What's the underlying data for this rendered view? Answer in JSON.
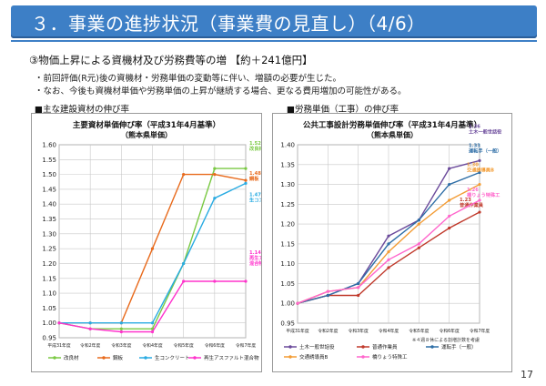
{
  "page": {
    "title": "３．事業の進捗状況（事業費の見直し）（4/6）",
    "subtitle": "③物価上昇による資機材及び労務費等の増 【約＋241億円】",
    "bullets": [
      "・前回評価(R元)後の資機材・労務単価の変動等に伴い、増額の必要が生じた。",
      "・なお、今後も資機材単価や労務単価の上昇が継続する場合、更なる費用増加の可能性がある。"
    ],
    "section_left": "■主な建設資材の伸び率",
    "section_right": "■労務単価（工事）の伸び率",
    "page_number": "17"
  },
  "colors": {
    "title_bar": "#3d7fc6",
    "kairyozai": "#7ac943",
    "kouhan": "#e86a1c",
    "nama_con": "#29abe2",
    "saisei_asphalt": "#ff33cc",
    "doboku_ippan": "#6b4a9b",
    "futsu_sagyoin": "#c0392b",
    "untenshu": "#2e6ea6",
    "kotsu_yudoin": "#f39c34",
    "hashi_tokushu": "#ff66cc",
    "line_gray": "#a0a0a0"
  },
  "chart_data": [
    {
      "type": "line",
      "title": "主要資材単価伸び率（平成31年4月基準）",
      "subtitle": "（熊本県単価）",
      "categories": [
        "平成31年度",
        "令和2年度",
        "令和3年度",
        "令和4年度",
        "令和5年度",
        "令和6年度",
        "令和7年度"
      ],
      "ylim": [
        0.95,
        1.6
      ],
      "yticks": [
        "0.95",
        "1.00",
        "1.05",
        "1.10",
        "1.15",
        "1.20",
        "1.25",
        "1.30",
        "1.35",
        "1.40",
        "1.45",
        "1.50",
        "1.55",
        "1.60"
      ],
      "series": [
        {
          "name": "改良材",
          "color": "#7ac943",
          "values": [
            1.0,
            0.98,
            0.98,
            0.98,
            1.2,
            1.52,
            1.52
          ],
          "label": "1.52\n改良材"
        },
        {
          "name": "鋼板",
          "color": "#e86a1c",
          "values": [
            1.0,
            1.0,
            1.0,
            1.25,
            1.5,
            1.5,
            1.48
          ],
          "label": "1.48\n鋼板"
        },
        {
          "name": "生コンクリート",
          "color": "#29abe2",
          "values": [
            1.0,
            1.0,
            1.0,
            1.0,
            1.2,
            1.42,
            1.47
          ],
          "label": "1.47\n生コンクリート"
        },
        {
          "name": "再生アスファルト混合物",
          "color": "#ff33cc",
          "values": [
            1.0,
            0.98,
            0.97,
            0.97,
            1.14,
            1.14,
            1.14
          ],
          "label": "1.14\n再生アスファルト\n混合物"
        }
      ],
      "legend": [
        "改良材",
        "鋼板",
        "生コンクリート",
        "再生アスファルト混合物"
      ]
    },
    {
      "type": "line",
      "title": "公共工事設計労務単価伸び率（平成31年4月基準）",
      "subtitle": "（熊本県単価）",
      "categories": [
        "平成31年度",
        "令和2年度",
        "令和3年度",
        "令和4年度",
        "令和5年度",
        "令和6年度",
        "令和7年度"
      ],
      "ylim": [
        0.95,
        1.4
      ],
      "yticks": [
        "0.95",
        "1.00",
        "1.05",
        "1.10",
        "1.15",
        "1.20",
        "1.25",
        "1.30",
        "1.35",
        "1.40"
      ],
      "series": [
        {
          "name": "土木一般世話役",
          "color": "#6b4a9b",
          "values": [
            1.0,
            1.02,
            1.05,
            1.17,
            1.21,
            1.34,
            1.36
          ],
          "label": "1.36\n土木一般世話役"
        },
        {
          "name": "普通作業員",
          "color": "#c0392b",
          "values": [
            1.0,
            1.02,
            1.02,
            1.09,
            1.14,
            1.19,
            1.23
          ],
          "label": "1.23\n普通作業員"
        },
        {
          "name": "運転手（一般）",
          "color": "#2e6ea6",
          "values": [
            1.0,
            1.02,
            1.05,
            1.15,
            1.21,
            1.3,
            1.33
          ],
          "label": "1.33\n運転手（一般）"
        },
        {
          "name": "交通誘導員B",
          "color": "#f39c34",
          "values": [
            1.0,
            1.03,
            1.04,
            1.13,
            1.2,
            1.26,
            1.3
          ],
          "label": "1.30\n交通誘導員B"
        },
        {
          "name": "橋りょう特殊工",
          "color": "#ff66cc",
          "values": [
            1.0,
            1.03,
            1.04,
            1.11,
            1.15,
            1.22,
            1.26
          ],
          "label": "1.26\n橋りょう特殊工"
        }
      ],
      "note": "※４週８休による割増計数を考慮",
      "legend": [
        "土木一般世話役",
        "普通作業員",
        "運転手（一般）",
        "交通誘導員B",
        "橋りょう特殊工"
      ]
    }
  ]
}
